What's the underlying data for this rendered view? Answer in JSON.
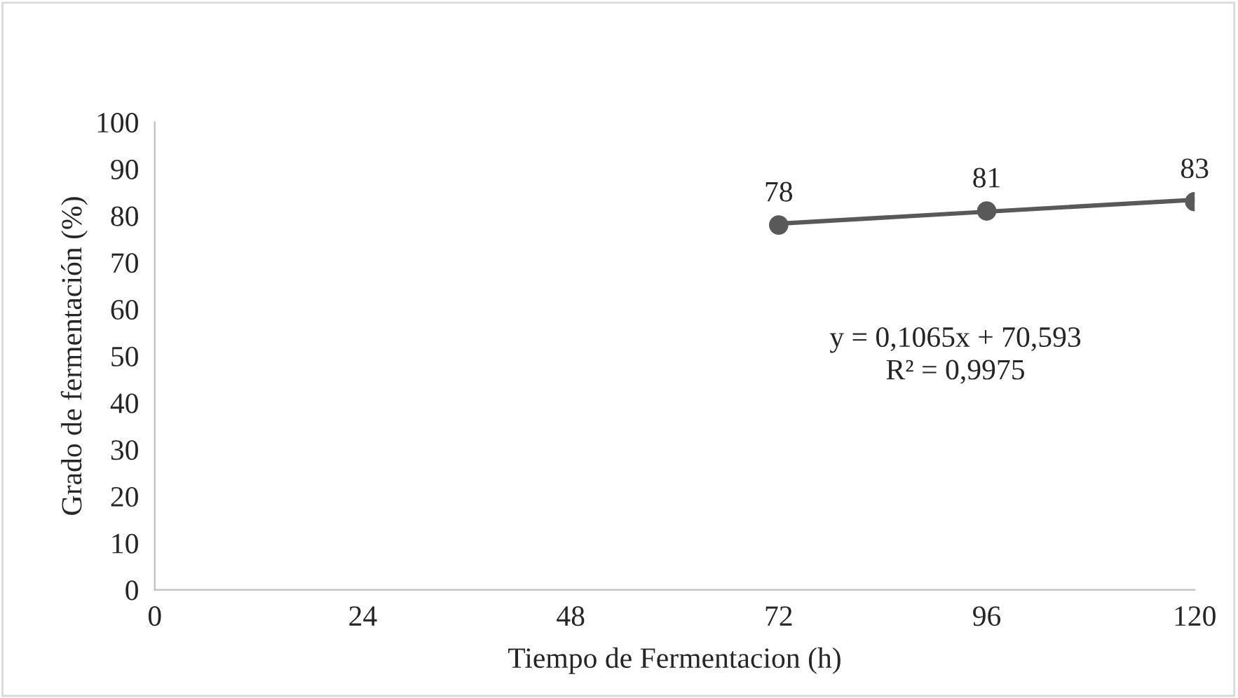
{
  "chart_data": {
    "type": "line",
    "xlabel": "Tiempo de Fermentacion (h)",
    "ylabel": "Grado de fermentación (%)",
    "series": [
      {
        "type": "scatter",
        "color": "#595959",
        "x": [
          72,
          96,
          120
        ],
        "values": [
          78,
          81,
          83
        ],
        "marker": "circle",
        "data_labels": true
      },
      {
        "color": "#595959",
        "x": [
          72,
          120
        ],
        "values": [
          78.3,
          83.4
        ],
        "marker": "none"
      }
    ],
    "annotations": [
      "y = 0,1065x + 70,593\nR² = 0,9975"
    ],
    "xlim": [
      0,
      120
    ],
    "xticks": [
      0,
      24,
      48,
      72,
      96,
      120
    ],
    "ylim": [
      0,
      100
    ],
    "yticks": [
      0,
      10,
      20,
      30,
      40,
      50,
      60,
      70,
      80,
      90,
      100
    ],
    "grid": false,
    "legend": false
  }
}
